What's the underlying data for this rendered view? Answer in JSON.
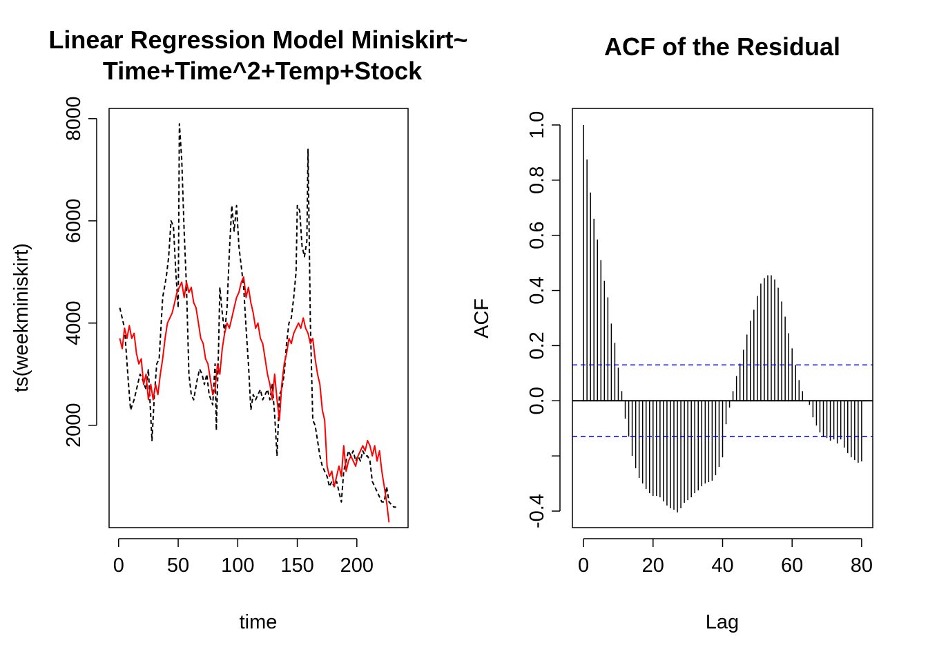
{
  "colors": {
    "observed": "#000000",
    "fitted": "#ff0000",
    "acf_bars": "#000000",
    "ci": "#0000ff"
  },
  "chart_data": [
    {
      "type": "line",
      "title_line1": "Linear Regression Model Miniskirt~",
      "title_line2": "Time+Time^2+Temp+Stock",
      "xlabel": "time",
      "ylabel": "ts(weekminiskirt)",
      "xlim": [
        -8,
        243
      ],
      "ylim": [
        -3,
        8200
      ],
      "x_ticks": [
        0,
        50,
        100,
        150,
        200
      ],
      "x_tick_labels": [
        "0",
        "50",
        "100",
        "150",
        "200"
      ],
      "y_ticks": [
        2000,
        4000,
        6000,
        8000
      ],
      "y_tick_labels": [
        "2000",
        "4000",
        "6000",
        "8000"
      ],
      "series": [
        {
          "style": "dashed",
          "color": "#000000",
          "points": [
            [
              1,
              4300
            ],
            [
              5,
              3900
            ],
            [
              8,
              2900
            ],
            [
              10,
              2300
            ],
            [
              13,
              2500
            ],
            [
              16,
              2800
            ],
            [
              18,
              3000
            ],
            [
              20,
              2900
            ],
            [
              23,
              2700
            ],
            [
              25,
              3100
            ],
            [
              28,
              1700
            ],
            [
              30,
              2600
            ],
            [
              32,
              3200
            ],
            [
              34,
              3300
            ],
            [
              37,
              4500
            ],
            [
              40,
              4900
            ],
            [
              42,
              5300
            ],
            [
              44,
              6000
            ],
            [
              46,
              5900
            ],
            [
              48,
              5000
            ],
            [
              50,
              4300
            ],
            [
              51,
              7900
            ],
            [
              53,
              7200
            ],
            [
              55,
              5800
            ],
            [
              57,
              4700
            ],
            [
              59,
              3000
            ],
            [
              61,
              2600
            ],
            [
              63,
              2500
            ],
            [
              66,
              2900
            ],
            [
              68,
              3100
            ],
            [
              70,
              3000
            ],
            [
              72,
              2800
            ],
            [
              74,
              3000
            ],
            [
              76,
              2600
            ],
            [
              79,
              2400
            ],
            [
              81,
              3200
            ],
            [
              82,
              1900
            ],
            [
              84,
              3600
            ],
            [
              85,
              4700
            ],
            [
              87,
              4200
            ],
            [
              89,
              3800
            ],
            [
              91,
              4300
            ],
            [
              93,
              5400
            ],
            [
              95,
              6300
            ],
            [
              97,
              5800
            ],
            [
              99,
              6300
            ],
            [
              101,
              5500
            ],
            [
              103,
              5100
            ],
            [
              105,
              4700
            ],
            [
              107,
              3900
            ],
            [
              109,
              3200
            ],
            [
              111,
              2300
            ],
            [
              113,
              2600
            ],
            [
              115,
              2500
            ],
            [
              117,
              2600
            ],
            [
              119,
              2700
            ],
            [
              121,
              2500
            ],
            [
              123,
              2600
            ],
            [
              125,
              2700
            ],
            [
              127,
              2500
            ],
            [
              129,
              2800
            ],
            [
              131,
              2200
            ],
            [
              133,
              1400
            ],
            [
              135,
              2600
            ],
            [
              137,
              2700
            ],
            [
              139,
              3000
            ],
            [
              141,
              3600
            ],
            [
              143,
              4000
            ],
            [
              145,
              4100
            ],
            [
              147,
              4500
            ],
            [
              149,
              5000
            ],
            [
              150,
              6300
            ],
            [
              152,
              6200
            ],
            [
              154,
              5500
            ],
            [
              156,
              5300
            ],
            [
              158,
              5600
            ],
            [
              159,
              7400
            ],
            [
              161,
              4000
            ],
            [
              163,
              2100
            ],
            [
              165,
              2000
            ],
            [
              167,
              1700
            ],
            [
              169,
              1400
            ],
            [
              171,
              1200
            ],
            [
              173,
              1100
            ],
            [
              175,
              1000
            ],
            [
              177,
              800
            ],
            [
              179,
              900
            ],
            [
              181,
              800
            ],
            [
              183,
              900
            ],
            [
              185,
              700
            ],
            [
              187,
              500
            ],
            [
              189,
              1100
            ],
            [
              191,
              1300
            ],
            [
              193,
              1500
            ],
            [
              195,
              1400
            ],
            [
              197,
              1500
            ],
            [
              199,
              1300
            ],
            [
              201,
              1400
            ],
            [
              203,
              1300
            ],
            [
              205,
              1500
            ],
            [
              207,
              1400
            ],
            [
              209,
              1400
            ],
            [
              211,
              1300
            ],
            [
              213,
              900
            ],
            [
              215,
              800
            ],
            [
              217,
              700
            ],
            [
              219,
              600
            ],
            [
              221,
              500
            ],
            [
              223,
              500
            ],
            [
              225,
              800
            ],
            [
              227,
              500
            ],
            [
              229,
              450
            ],
            [
              231,
              400
            ],
            [
              233,
              400
            ]
          ]
        },
        {
          "style": "solid",
          "color": "#ff0000",
          "points": [
            [
              1,
              3700
            ],
            [
              3,
              3500
            ],
            [
              5,
              3900
            ],
            [
              7,
              3700
            ],
            [
              9,
              3950
            ],
            [
              11,
              3700
            ],
            [
              13,
              3800
            ],
            [
              15,
              3400
            ],
            [
              17,
              3200
            ],
            [
              19,
              3300
            ],
            [
              21,
              2800
            ],
            [
              23,
              3000
            ],
            [
              25,
              2500
            ],
            [
              27,
              2800
            ],
            [
              29,
              2500
            ],
            [
              31,
              2800
            ],
            [
              33,
              2600
            ],
            [
              35,
              3000
            ],
            [
              37,
              3300
            ],
            [
              39,
              3700
            ],
            [
              41,
              4000
            ],
            [
              43,
              4100
            ],
            [
              45,
              4200
            ],
            [
              47,
              4400
            ],
            [
              49,
              4600
            ],
            [
              51,
              4700
            ],
            [
              53,
              4800
            ],
            [
              55,
              4500
            ],
            [
              57,
              4800
            ],
            [
              59,
              4600
            ],
            [
              61,
              4700
            ],
            [
              63,
              4400
            ],
            [
              65,
              4300
            ],
            [
              67,
              4000
            ],
            [
              69,
              3700
            ],
            [
              71,
              3600
            ],
            [
              73,
              3300
            ],
            [
              75,
              3200
            ],
            [
              77,
              2900
            ],
            [
              79,
              2600
            ],
            [
              81,
              2700
            ],
            [
              83,
              3200
            ],
            [
              85,
              3000
            ],
            [
              87,
              3500
            ],
            [
              89,
              3800
            ],
            [
              91,
              4000
            ],
            [
              93,
              3900
            ],
            [
              95,
              4100
            ],
            [
              97,
              4300
            ],
            [
              99,
              4500
            ],
            [
              101,
              4600
            ],
            [
              103,
              4800
            ],
            [
              105,
              4900
            ],
            [
              107,
              4500
            ],
            [
              109,
              4700
            ],
            [
              111,
              4400
            ],
            [
              113,
              4200
            ],
            [
              115,
              3900
            ],
            [
              117,
              4000
            ],
            [
              119,
              3700
            ],
            [
              121,
              3600
            ],
            [
              123,
              3300
            ],
            [
              125,
              3000
            ],
            [
              127,
              2800
            ],
            [
              129,
              2500
            ],
            [
              131,
              3000
            ],
            [
              133,
              2500
            ],
            [
              135,
              2100
            ],
            [
              137,
              2800
            ],
            [
              139,
              3200
            ],
            [
              141,
              3400
            ],
            [
              143,
              3700
            ],
            [
              145,
              3600
            ],
            [
              147,
              3800
            ],
            [
              149,
              3900
            ],
            [
              151,
              4000
            ],
            [
              153,
              3900
            ],
            [
              155,
              4100
            ],
            [
              157,
              3900
            ],
            [
              159,
              3800
            ],
            [
              161,
              3600
            ],
            [
              163,
              3700
            ],
            [
              165,
              3300
            ],
            [
              167,
              3000
            ],
            [
              169,
              2800
            ],
            [
              171,
              2300
            ],
            [
              173,
              2100
            ],
            [
              175,
              1200
            ],
            [
              177,
              1000
            ],
            [
              179,
              1100
            ],
            [
              181,
              800
            ],
            [
              183,
              1000
            ],
            [
              185,
              1200
            ],
            [
              187,
              1000
            ],
            [
              189,
              1600
            ],
            [
              191,
              1100
            ],
            [
              193,
              1300
            ],
            [
              195,
              1400
            ],
            [
              197,
              1300
            ],
            [
              199,
              1200
            ],
            [
              201,
              1400
            ],
            [
              203,
              1500
            ],
            [
              205,
              1600
            ],
            [
              207,
              1500
            ],
            [
              209,
              1700
            ],
            [
              211,
              1600
            ],
            [
              213,
              1400
            ],
            [
              215,
              1600
            ],
            [
              217,
              1300
            ],
            [
              219,
              1500
            ],
            [
              221,
              1100
            ],
            [
              223,
              800
            ],
            [
              225,
              500
            ],
            [
              227,
              100
            ]
          ]
        }
      ]
    },
    {
      "type": "bar",
      "title": "ACF of the Residual",
      "xlabel": "Lag",
      "ylabel": "ACF",
      "xlim": [
        -3.2,
        83.2
      ],
      "ylim": [
        -0.46,
        1.06
      ],
      "x_ticks": [
        0,
        20,
        40,
        60,
        80
      ],
      "x_tick_labels": [
        "0",
        "20",
        "40",
        "60",
        "80"
      ],
      "y_ticks": [
        -0.4,
        -0.2,
        0.0,
        0.2,
        0.4,
        0.6,
        0.8,
        1.0
      ],
      "y_tick_labels": [
        "-0.4",
        "",
        "0.0",
        "0.2",
        "0.4",
        "0.6",
        "0.8",
        "1.0"
      ],
      "ci": 0.13,
      "lags": [
        0,
        1,
        2,
        3,
        4,
        5,
        6,
        7,
        8,
        9,
        10,
        11,
        12,
        13,
        14,
        15,
        16,
        17,
        18,
        19,
        20,
        21,
        22,
        23,
        24,
        25,
        26,
        27,
        28,
        29,
        30,
        31,
        32,
        33,
        34,
        35,
        36,
        37,
        38,
        39,
        40,
        41,
        42,
        43,
        44,
        45,
        46,
        47,
        48,
        49,
        50,
        51,
        52,
        53,
        54,
        55,
        56,
        57,
        58,
        59,
        60,
        61,
        62,
        63,
        64,
        65,
        66,
        67,
        68,
        69,
        70,
        71,
        72,
        73,
        74,
        75,
        76,
        77,
        78,
        79,
        80
      ],
      "values": [
        1.0,
        0.875,
        0.755,
        0.66,
        0.585,
        0.51,
        0.435,
        0.375,
        0.28,
        0.21,
        0.12,
        0.035,
        -0.065,
        -0.13,
        -0.2,
        -0.245,
        -0.28,
        -0.3,
        -0.32,
        -0.335,
        -0.345,
        -0.345,
        -0.35,
        -0.365,
        -0.38,
        -0.39,
        -0.395,
        -0.405,
        -0.39,
        -0.37,
        -0.36,
        -0.35,
        -0.335,
        -0.325,
        -0.31,
        -0.3,
        -0.295,
        -0.29,
        -0.27,
        -0.24,
        -0.205,
        -0.085,
        -0.025,
        0.035,
        0.09,
        0.135,
        0.185,
        0.24,
        0.29,
        0.33,
        0.38,
        0.425,
        0.445,
        0.455,
        0.455,
        0.44,
        0.41,
        0.36,
        0.305,
        0.245,
        0.19,
        0.13,
        0.075,
        0.035,
        0.0,
        -0.015,
        -0.06,
        -0.09,
        -0.115,
        -0.13,
        -0.135,
        -0.145,
        -0.14,
        -0.155,
        -0.14,
        -0.17,
        -0.19,
        -0.205,
        -0.215,
        -0.225,
        -0.22
      ]
    }
  ]
}
